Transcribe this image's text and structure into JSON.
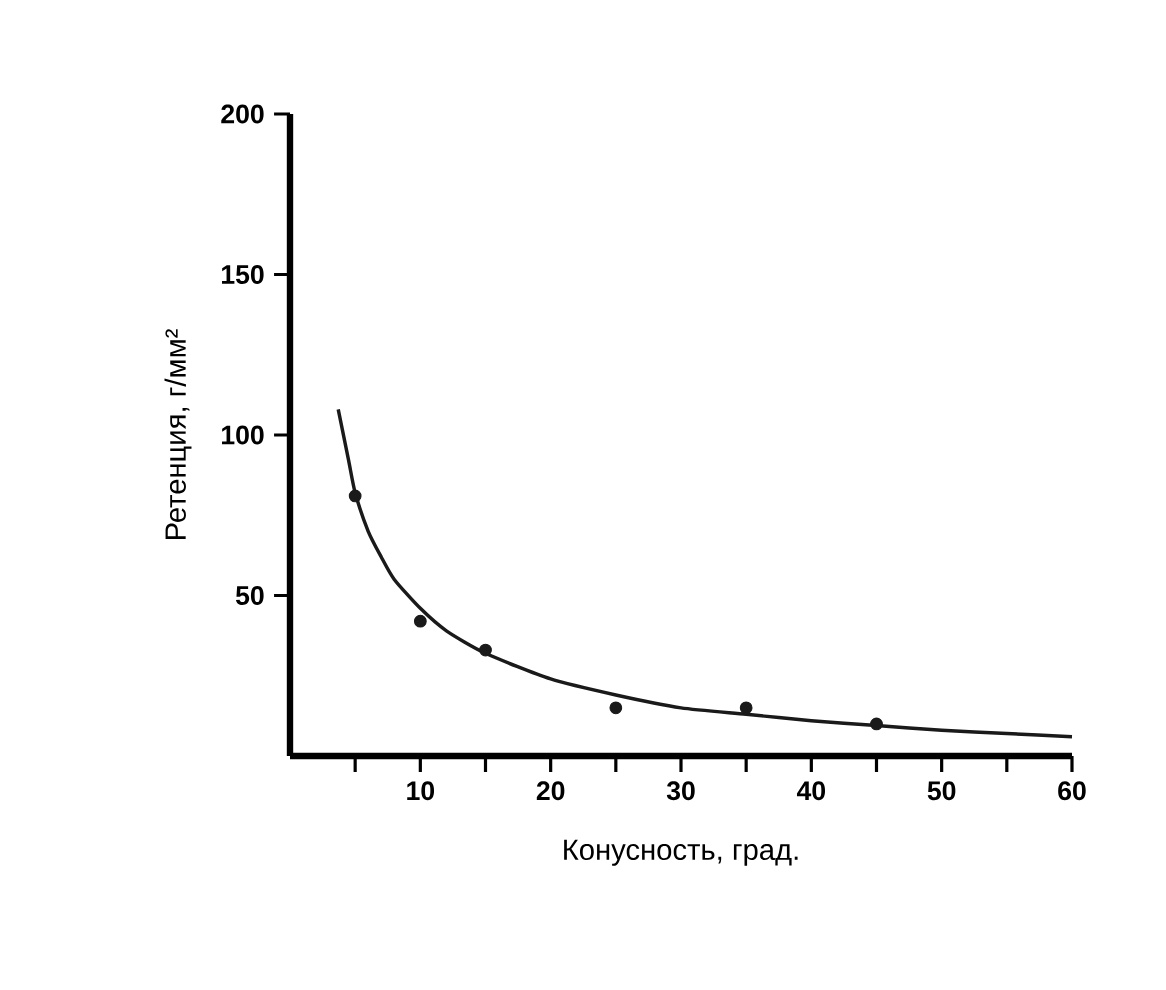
{
  "chart_data": {
    "type": "scatter",
    "xlabel": "Конусность, град.",
    "ylabel": "Ретенция, г/мм²",
    "xlim": [
      0,
      60
    ],
    "ylim": [
      0,
      200
    ],
    "xticks": [
      {
        "value": 5,
        "label": null
      },
      10,
      {
        "value": 15,
        "label": null
      },
      20,
      {
        "value": 25,
        "label": null
      },
      30,
      {
        "value": 35,
        "label": null
      },
      40,
      {
        "value": 45,
        "label": null
      },
      50,
      {
        "value": 55,
        "label": null
      },
      60
    ],
    "yticks": [
      50,
      100,
      150,
      200
    ],
    "series": [
      {
        "color": "#1a1a1a",
        "marker": "circle",
        "x": [
          5,
          10,
          15,
          25,
          35,
          45
        ],
        "values": [
          81,
          42,
          33,
          15,
          15,
          10
        ]
      },
      {
        "type": "line",
        "color": "#1a1a1a",
        "marker": "none",
        "line_style": "solid",
        "x": [
          3.7,
          4.5,
          5,
          6,
          7,
          8,
          10,
          12,
          15,
          20,
          25,
          30,
          35,
          40,
          45,
          50,
          55,
          60
        ],
        "values": [
          108,
          92,
          82,
          70,
          62,
          55,
          46,
          39,
          32,
          24,
          19,
          15,
          13,
          11,
          9.5,
          8,
          7,
          6
        ]
      }
    ]
  }
}
